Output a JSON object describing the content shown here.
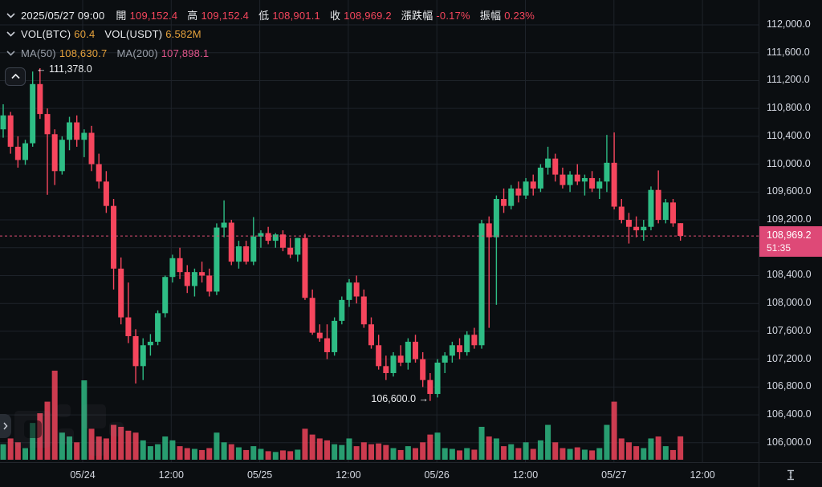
{
  "header": {
    "datetime": "2025/05/27 09:00",
    "ohlc_fields": [
      {
        "label": "開",
        "value": "109,152.4"
      },
      {
        "label": "高",
        "value": "109,152.4"
      },
      {
        "label": "低",
        "value": "108,901.1"
      },
      {
        "label": "收",
        "value": "108,969.2"
      },
      {
        "label": "漲跌幅",
        "value": "-0.17%"
      },
      {
        "label": "振幅",
        "value": "0.23%"
      }
    ],
    "vol_row": [
      {
        "label": "VOL(BTC)",
        "value": "60.4"
      },
      {
        "label": "VOL(USDT)",
        "value": "6.582M"
      }
    ],
    "ma_row": [
      {
        "label": "MA(50)",
        "value": "108,630.7",
        "color": "#E6A23C"
      },
      {
        "label": "MA(200)",
        "value": "107,898.1",
        "color": "#E0558C"
      }
    ]
  },
  "annotations": {
    "high": "← 111,378.0",
    "low": "106,600.0 →"
  },
  "price_axis": {
    "labels": [
      "112,000.0",
      "111,600.0",
      "111,200.0",
      "110,800.0",
      "110,400.0",
      "110,000.0",
      "109,600.0",
      "109,200.0",
      "108,800.0",
      "108,400.0",
      "108,000.0",
      "107,600.0",
      "107,200.0",
      "106,800.0",
      "106,400.0",
      "106,000.0"
    ],
    "badge": {
      "price": "108,969.2",
      "countdown": "51:35"
    }
  },
  "time_axis": [
    "05/24",
    "12:00",
    "05/25",
    "12:00",
    "05/26",
    "12:00",
    "05/27",
    "12:00"
  ],
  "colors": {
    "up": "#2EBD85",
    "down": "#F6465D",
    "accent_orange": "#E6A23C",
    "ma200_pink": "#E0558C",
    "badge_bg": "#DE4977",
    "price_line": "#E14E74",
    "grid": "#1E232A",
    "text": "#EAECEF",
    "muted": "#9AA0AA"
  },
  "chart_data": {
    "type": "candlestick",
    "symbol_interval": "1h",
    "series_start": "2025-05-23 13:00",
    "last_price": 108969.2,
    "high_annotation_price": 111378.0,
    "low_annotation_price": 106600.0,
    "price_range": [
      106000,
      112000
    ],
    "grid_step": 400,
    "legend_note": "candles are [open, high, low, close, volume]",
    "candles": [
      [
        110500,
        110860,
        110380,
        110700,
        40
      ],
      [
        110700,
        110750,
        110150,
        110250,
        55
      ],
      [
        110250,
        110400,
        109950,
        110060,
        45
      ],
      [
        110060,
        110350,
        109990,
        110300,
        30
      ],
      [
        110300,
        111330,
        110250,
        111150,
        95
      ],
      [
        111150,
        111378,
        110650,
        110720,
        120
      ],
      [
        110720,
        110800,
        109560,
        110430,
        150
      ],
      [
        110430,
        110500,
        109700,
        109900,
        230
      ],
      [
        109900,
        110400,
        109850,
        110350,
        70
      ],
      [
        110350,
        110680,
        110200,
        110600,
        60
      ],
      [
        110600,
        110700,
        110250,
        110350,
        45
      ],
      [
        110350,
        110500,
        110100,
        110450,
        205
      ],
      [
        110450,
        110550,
        109900,
        110000,
        80
      ],
      [
        110000,
        110150,
        109650,
        109750,
        60
      ],
      [
        109750,
        109900,
        109300,
        109400,
        55
      ],
      [
        109400,
        109500,
        108200,
        108500,
        90
      ],
      [
        108500,
        108660,
        107700,
        107800,
        85
      ],
      [
        107800,
        108300,
        107430,
        107530,
        75
      ],
      [
        107530,
        107630,
        106850,
        107100,
        70
      ],
      [
        107100,
        107500,
        106900,
        107400,
        50
      ],
      [
        107400,
        107560,
        107250,
        107450,
        35
      ],
      [
        107450,
        107900,
        107400,
        107860,
        40
      ],
      [
        107860,
        108400,
        107800,
        108380,
        60
      ],
      [
        108380,
        108700,
        108300,
        108650,
        50
      ],
      [
        108650,
        108800,
        108350,
        108450,
        35
      ],
      [
        108450,
        108550,
        108150,
        108250,
        30
      ],
      [
        108250,
        108500,
        108100,
        108450,
        28
      ],
      [
        108450,
        108600,
        108300,
        108400,
        25
      ],
      [
        108400,
        108500,
        108100,
        108170,
        30
      ],
      [
        108170,
        109150,
        108120,
        109090,
        70
      ],
      [
        109090,
        109480,
        108950,
        109160,
        45
      ],
      [
        109160,
        109200,
        108550,
        108600,
        40
      ],
      [
        108600,
        108900,
        108500,
        108820,
        32
      ],
      [
        108820,
        108900,
        108560,
        108600,
        25
      ],
      [
        108600,
        109240,
        108550,
        108960,
        35
      ],
      [
        108960,
        109050,
        108800,
        109010,
        28
      ],
      [
        109010,
        109100,
        108850,
        108900,
        22
      ],
      [
        108900,
        109010,
        108800,
        108990,
        20
      ],
      [
        108990,
        109050,
        108750,
        108800,
        24
      ],
      [
        108800,
        108940,
        108650,
        108700,
        22
      ],
      [
        108700,
        108940,
        108600,
        108940,
        26
      ],
      [
        108940,
        109000,
        108050,
        108080,
        80
      ],
      [
        108080,
        108200,
        107550,
        107580,
        65
      ],
      [
        107580,
        107700,
        107450,
        107500,
        55
      ],
      [
        107500,
        107700,
        107200,
        107300,
        50
      ],
      [
        107300,
        107800,
        107250,
        107750,
        40
      ],
      [
        107750,
        108100,
        107700,
        108050,
        38
      ],
      [
        108050,
        108350,
        107950,
        108300,
        55
      ],
      [
        108300,
        108400,
        108000,
        108100,
        35
      ],
      [
        108100,
        108200,
        107650,
        107700,
        45
      ],
      [
        107700,
        107800,
        107350,
        107400,
        40
      ],
      [
        107400,
        107550,
        107050,
        107100,
        42
      ],
      [
        107100,
        107250,
        106900,
        107000,
        38
      ],
      [
        107000,
        107300,
        106950,
        107250,
        30
      ],
      [
        107250,
        107400,
        107100,
        107150,
        25
      ],
      [
        107150,
        107500,
        107050,
        107450,
        35
      ],
      [
        107450,
        107550,
        107150,
        107200,
        30
      ],
      [
        107200,
        107300,
        106800,
        106900,
        45
      ],
      [
        106900,
        107000,
        106600,
        106700,
        65
      ],
      [
        106700,
        107200,
        106650,
        107150,
        70
      ],
      [
        107150,
        107300,
        107000,
        107250,
        30
      ],
      [
        107250,
        107450,
        107150,
        107400,
        28
      ],
      [
        107400,
        107500,
        107200,
        107300,
        24
      ],
      [
        107300,
        107600,
        107250,
        107550,
        30
      ],
      [
        107550,
        107650,
        107350,
        107400,
        26
      ],
      [
        107400,
        109200,
        107350,
        109150,
        85
      ],
      [
        109150,
        109250,
        107650,
        108950,
        60
      ],
      [
        108950,
        109550,
        107980,
        109500,
        55
      ],
      [
        109500,
        109650,
        109300,
        109400,
        35
      ],
      [
        109400,
        109700,
        109350,
        109650,
        40
      ],
      [
        109650,
        109750,
        109450,
        109550,
        30
      ],
      [
        109550,
        109800,
        109500,
        109750,
        45
      ],
      [
        109750,
        109850,
        109550,
        109650,
        28
      ],
      [
        109650,
        110000,
        109600,
        109950,
        50
      ],
      [
        109950,
        110250,
        109850,
        110080,
        90
      ],
      [
        110080,
        110150,
        109750,
        109850,
        45
      ],
      [
        109850,
        109950,
        109650,
        109700,
        30
      ],
      [
        109700,
        109900,
        109600,
        109850,
        28
      ],
      [
        109850,
        110000,
        109700,
        109750,
        32
      ],
      [
        109750,
        109850,
        109550,
        109800,
        26
      ],
      [
        109800,
        109900,
        109600,
        109650,
        24
      ],
      [
        109650,
        109800,
        109500,
        109750,
        30
      ],
      [
        109750,
        110420,
        109600,
        110020,
        90
      ],
      [
        110020,
        110455,
        109350,
        109390,
        150
      ],
      [
        109390,
        109500,
        109150,
        109200,
        55
      ],
      [
        109200,
        109300,
        108860,
        109100,
        45
      ],
      [
        109100,
        109250,
        108950,
        109050,
        35
      ],
      [
        109050,
        109200,
        108900,
        109100,
        30
      ],
      [
        109100,
        109680,
        109050,
        109630,
        55
      ],
      [
        109630,
        109910,
        109150,
        109200,
        60
      ],
      [
        109200,
        109500,
        109150,
        109450,
        35
      ],
      [
        109450,
        109500,
        109100,
        109150,
        25
      ],
      [
        109152.4,
        109152.4,
        108901.1,
        108969.2,
        60.4
      ]
    ]
  }
}
